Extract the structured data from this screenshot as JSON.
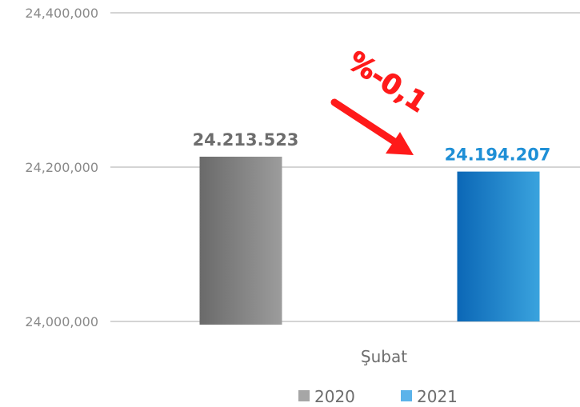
{
  "chart_data": {
    "type": "bar",
    "categories": [
      "Şubat"
    ],
    "series": [
      {
        "name": "2020",
        "values": [
          24213523
        ],
        "label": "24.213.523",
        "color": "#9a9a9a",
        "label_color": "#6d6d6d"
      },
      {
        "name": "2021",
        "values": [
          24194207
        ],
        "label": "24.194.207",
        "color": "#3aa0dc",
        "label_color": "#1e8fd6"
      }
    ],
    "ylim": [
      24000000,
      24400000
    ],
    "yticks": [
      "24,000,000",
      "24,200,000",
      "24,400,000"
    ],
    "ytick_values": [
      24000000,
      24200000,
      24400000
    ],
    "grid": true,
    "legend_position": "bottom",
    "annotation": {
      "text": "%-0,1",
      "color": "#ff0000"
    }
  }
}
